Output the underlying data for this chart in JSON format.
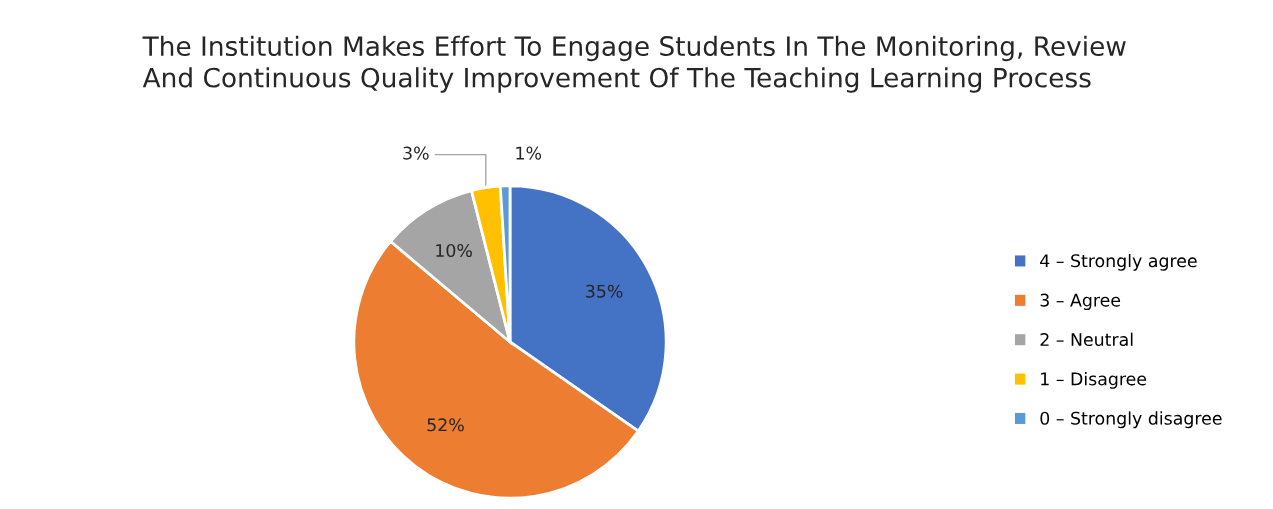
{
  "chart_data": {
    "type": "pie",
    "title": "The Institution Makes Effort To Engage Students In The Monitoring, Review And Continuous Quality Improvement Of The Teaching Learning Process",
    "categories": [
      "4 – Strongly agree",
      "3 – Agree",
      "2 – Neutral",
      "1 – Disagree",
      "0 – Strongly disagree"
    ],
    "values": [
      35,
      52,
      10,
      3,
      1
    ],
    "colors": [
      "#4472c4",
      "#ed7d31",
      "#a5a5a5",
      "#ffc000",
      "#5b9bd5"
    ],
    "value_labels": [
      "35%",
      "52%",
      "10%",
      "3%",
      "1%"
    ],
    "legend": "right"
  }
}
